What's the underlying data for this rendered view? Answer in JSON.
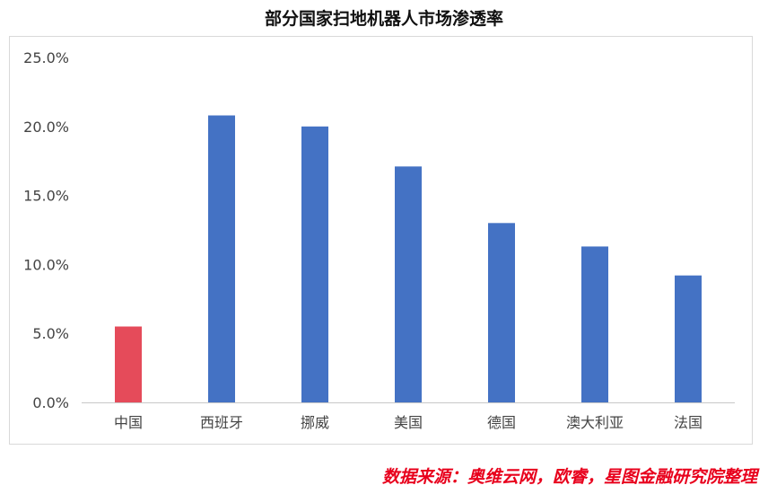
{
  "chart_data": {
    "type": "bar",
    "title": "部分国家扫地机器人市场渗透率",
    "xlabel": "",
    "ylabel": "",
    "categories": [
      "中国",
      "西班牙",
      "挪威",
      "美国",
      "德国",
      "澳大利亚",
      "法国"
    ],
    "values": [
      0.055,
      0.208,
      0.2,
      0.171,
      0.13,
      0.113,
      0.092
    ],
    "ylim": [
      0,
      0.25
    ],
    "y_ticks": [
      0,
      0.05,
      0.1,
      0.15,
      0.2,
      0.25
    ],
    "y_tick_labels": [
      "0.0%",
      "5.0%",
      "10.0%",
      "15.0%",
      "20.0%",
      "25.0%"
    ],
    "grid": false,
    "legend": "none",
    "colors": {
      "highlight": "#e54b5a",
      "default": "#4472c4",
      "axis": "#c8c8c8"
    },
    "highlight_index": 0
  },
  "source_note": "数据来源：奥维云网，欧睿，星图金融研究院整理"
}
